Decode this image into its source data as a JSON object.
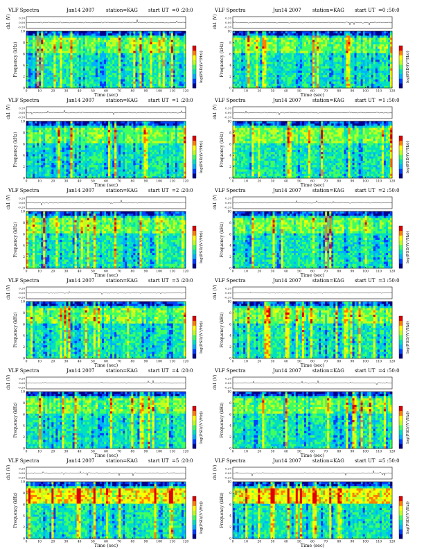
{
  "chart_data": [
    {
      "type": "heatmap",
      "title": "VLF Spectra",
      "date": "Jan14 2007",
      "station": "station=KAG",
      "start_label": "start UT",
      "start_time": "=0 :20:0",
      "ch_label": "ch1 (V)",
      "ch_ticks": [
        "0.20",
        "0.00",
        "-0.20"
      ],
      "ylabel": "Frequency (kHz)",
      "yticks": [
        "0",
        "2",
        "4",
        "6",
        "8",
        "10"
      ],
      "xlabel": "Time (sec)",
      "xticks": [
        "0",
        "10",
        "20",
        "30",
        "40",
        "50",
        "60",
        "70",
        "80",
        "90",
        "100",
        "110",
        "120"
      ],
      "colorbar_label": "log(PSD/(V²/Hz))",
      "xlim": [
        0,
        120
      ],
      "ylim": [
        0,
        10
      ]
    },
    {
      "type": "heatmap",
      "title": "VLF Spectra",
      "date": "Jun14 2007",
      "station": "station=KAG",
      "start_label": "start UT",
      "start_time": "=0 :50:0",
      "ch_label": "ch1 (V)",
      "ch_ticks": [
        "0.20",
        "0.00",
        "-0.20"
      ],
      "ylabel": "Frequency (kHz)",
      "yticks": [
        "0",
        "2",
        "4",
        "6",
        "8",
        "10"
      ],
      "xlabel": "Time (sec)",
      "xticks": [
        "0",
        "10",
        "20",
        "30",
        "40",
        "50",
        "60",
        "70",
        "80",
        "90",
        "100",
        "110",
        "120"
      ],
      "colorbar_label": "log(PSD/(V²/Hz))",
      "xlim": [
        0,
        120
      ],
      "ylim": [
        0,
        10
      ]
    },
    {
      "type": "heatmap",
      "title": "VLF Spectra",
      "date": "Jan14 2007",
      "station": "station=KAG",
      "start_label": "start UT",
      "start_time": "=1 :20:0",
      "ch_label": "ch1 (V)",
      "ch_ticks": [
        "0.20",
        "0.00",
        "-0.20"
      ],
      "ylabel": "Frequency (kHz)",
      "yticks": [
        "0",
        "2",
        "4",
        "6",
        "8",
        "10"
      ],
      "xlabel": "Time (sec)",
      "xticks": [
        "0",
        "10",
        "20",
        "30",
        "40",
        "50",
        "60",
        "70",
        "80",
        "90",
        "100",
        "110",
        "120"
      ],
      "colorbar_label": "log(PSD/(V²/Hz))",
      "xlim": [
        0,
        120
      ],
      "ylim": [
        0,
        10
      ]
    },
    {
      "type": "heatmap",
      "title": "VLF Spectra",
      "date": "Jun14 2007",
      "station": "station=KAG",
      "start_label": "start UT",
      "start_time": "=1 :50:0",
      "ch_label": "ch1 (V)",
      "ch_ticks": [
        "0.20",
        "0.00",
        "-0.20"
      ],
      "ylabel": "Frequency (kHz)",
      "yticks": [
        "0",
        "2",
        "4",
        "6",
        "8",
        "10"
      ],
      "xlabel": "Time (sec)",
      "xticks": [
        "0",
        "10",
        "20",
        "30",
        "40",
        "50",
        "60",
        "70",
        "80",
        "90",
        "100",
        "110",
        "120"
      ],
      "colorbar_label": "log(PSD/(V²/Hz))",
      "xlim": [
        0,
        120
      ],
      "ylim": [
        0,
        10
      ]
    },
    {
      "type": "heatmap",
      "title": "VLF Spectra",
      "date": "Jan14 2007",
      "station": "station=KAG",
      "start_label": "start UT",
      "start_time": "=2 :20:0",
      "ch_label": "ch1 (V)",
      "ch_ticks": [
        "0.20",
        "0.00",
        "-0.20"
      ],
      "ylabel": "Frequency (kHz)",
      "yticks": [
        "0",
        "2",
        "4",
        "6",
        "8",
        "10"
      ],
      "xlabel": "Time (sec)",
      "xticks": [
        "0",
        "10",
        "20",
        "30",
        "40",
        "50",
        "60",
        "70",
        "80",
        "90",
        "100",
        "110",
        "120"
      ],
      "colorbar_label": "log(PSD/(V²/Hz))",
      "xlim": [
        0,
        120
      ],
      "ylim": [
        0,
        10
      ]
    },
    {
      "type": "heatmap",
      "title": "VLF Spectra",
      "date": "Jun14 2007",
      "station": "station=KAG",
      "start_label": "start UT",
      "start_time": "=2 :50:0",
      "ch_label": "ch1 (V)",
      "ch_ticks": [
        "0.20",
        "0.00",
        "-0.20"
      ],
      "ylabel": "Frequency (kHz)",
      "yticks": [
        "0",
        "2",
        "4",
        "6",
        "8",
        "10"
      ],
      "xlabel": "Time (sec)",
      "xticks": [
        "0",
        "10",
        "20",
        "30",
        "40",
        "50",
        "60",
        "70",
        "80",
        "90",
        "100",
        "110",
        "120"
      ],
      "colorbar_label": "log(PSD/(V²/Hz))",
      "xlim": [
        0,
        120
      ],
      "ylim": [
        0,
        10
      ]
    },
    {
      "type": "heatmap",
      "title": "VLF Spectra",
      "date": "Jan14 2007",
      "station": "station=KAG",
      "start_label": "start UT",
      "start_time": "=3 :20:0",
      "ch_label": "ch1 (V)",
      "ch_ticks": [
        "0.20",
        "0.00",
        "-0.20"
      ],
      "ylabel": "Frequency (kHz)",
      "yticks": [
        "0",
        "2",
        "4",
        "6",
        "8",
        "10"
      ],
      "xlabel": "Time (sec)",
      "xticks": [
        "0",
        "10",
        "20",
        "30",
        "40",
        "50",
        "60",
        "70",
        "80",
        "90",
        "100",
        "110",
        "120"
      ],
      "colorbar_label": "log(PSD/(V²/Hz))",
      "xlim": [
        0,
        120
      ],
      "ylim": [
        0,
        10
      ]
    },
    {
      "type": "heatmap",
      "title": "VLF Spectra",
      "date": "Jun14 2007",
      "station": "station=KAG",
      "start_label": "start UT",
      "start_time": "=3 :50:0",
      "ch_label": "ch1 (V)",
      "ch_ticks": [
        "0.20",
        "0.00",
        "-0.20"
      ],
      "ylabel": "Frequency (kHz)",
      "yticks": [
        "0",
        "2",
        "4",
        "6",
        "8",
        "10"
      ],
      "xlabel": "Time (sec)",
      "xticks": [
        "0",
        "10",
        "20",
        "30",
        "40",
        "50",
        "60",
        "70",
        "80",
        "90",
        "100",
        "110",
        "120"
      ],
      "colorbar_label": "log(PSD/(V²/Hz))",
      "xlim": [
        0,
        120
      ],
      "ylim": [
        0,
        10
      ]
    },
    {
      "type": "heatmap",
      "title": "VLF Spectra",
      "date": "Jan14 2007",
      "station": "station=KAG",
      "start_label": "start UT",
      "start_time": "=4 :20:0",
      "ch_label": "ch1 (V)",
      "ch_ticks": [
        "0.20",
        "0.00",
        "-0.20"
      ],
      "ylabel": "Frequency (kHz)",
      "yticks": [
        "0",
        "2",
        "4",
        "6",
        "8",
        "10"
      ],
      "xlabel": "Time (sec)",
      "xticks": [
        "0",
        "10",
        "20",
        "30",
        "40",
        "50",
        "60",
        "70",
        "80",
        "90",
        "100",
        "110",
        "120"
      ],
      "colorbar_label": "log(PSD/(V²/Hz))",
      "xlim": [
        0,
        120
      ],
      "ylim": [
        0,
        10
      ]
    },
    {
      "type": "heatmap",
      "title": "VLF Spectra",
      "date": "Jun14 2007",
      "station": "station=KAG",
      "start_label": "start UT",
      "start_time": "=4 :50:0",
      "ch_label": "ch1 (V)",
      "ch_ticks": [
        "0.20",
        "0.00",
        "-0.20"
      ],
      "ylabel": "Frequency (kHz)",
      "yticks": [
        "0",
        "2",
        "4",
        "6",
        "8",
        "10"
      ],
      "xlabel": "Time (sec)",
      "xticks": [
        "0",
        "10",
        "20",
        "30",
        "40",
        "50",
        "60",
        "70",
        "80",
        "90",
        "100",
        "110",
        "120"
      ],
      "colorbar_label": "log(PSD/(V²/Hz))",
      "xlim": [
        0,
        120
      ],
      "ylim": [
        0,
        10
      ]
    },
    {
      "type": "heatmap",
      "title": "VLF Spectra",
      "date": "Jan14 2007",
      "station": "station=KAG",
      "start_label": "start UT",
      "start_time": "=5 :20:0",
      "ch_label": "ch1 (V)",
      "ch_ticks": [
        "0.20",
        "0.00",
        "-0.20"
      ],
      "ylabel": "Frequency (kHz)",
      "yticks": [
        "0",
        "2",
        "4",
        "6",
        "8",
        "10"
      ],
      "xlabel": "Time (sec)",
      "xticks": [
        "0",
        "10",
        "20",
        "30",
        "40",
        "50",
        "60",
        "70",
        "80",
        "90",
        "100",
        "110",
        "120"
      ],
      "colorbar_label": "log(PSD/(V²/Hz))",
      "xlim": [
        0,
        120
      ],
      "ylim": [
        0,
        10
      ]
    },
    {
      "type": "heatmap",
      "title": "VLF Spectra",
      "date": "Jun14 2007",
      "station": "station=KAG",
      "start_label": "start UT",
      "start_time": "=5 :50:0",
      "ch_label": "ch1 (V)",
      "ch_ticks": [
        "0.20",
        "0.00",
        "-0.20"
      ],
      "ylabel": "Frequency (kHz)",
      "yticks": [
        "0",
        "2",
        "4",
        "6",
        "8",
        "10"
      ],
      "xlabel": "Time (sec)",
      "xticks": [
        "0",
        "10",
        "20",
        "30",
        "40",
        "50",
        "60",
        "70",
        "80",
        "90",
        "100",
        "110",
        "120"
      ],
      "colorbar_label": "log(PSD/(V²/Hz))",
      "xlim": [
        0,
        120
      ],
      "ylim": [
        0,
        10
      ]
    }
  ],
  "colors": {
    "colormap": [
      "#00008b",
      "#0040ff",
      "#00b0ff",
      "#00e0c0",
      "#40ff60",
      "#c0ff20",
      "#ffff00",
      "#ff8000",
      "#e00000"
    ],
    "trace": "#000000"
  }
}
